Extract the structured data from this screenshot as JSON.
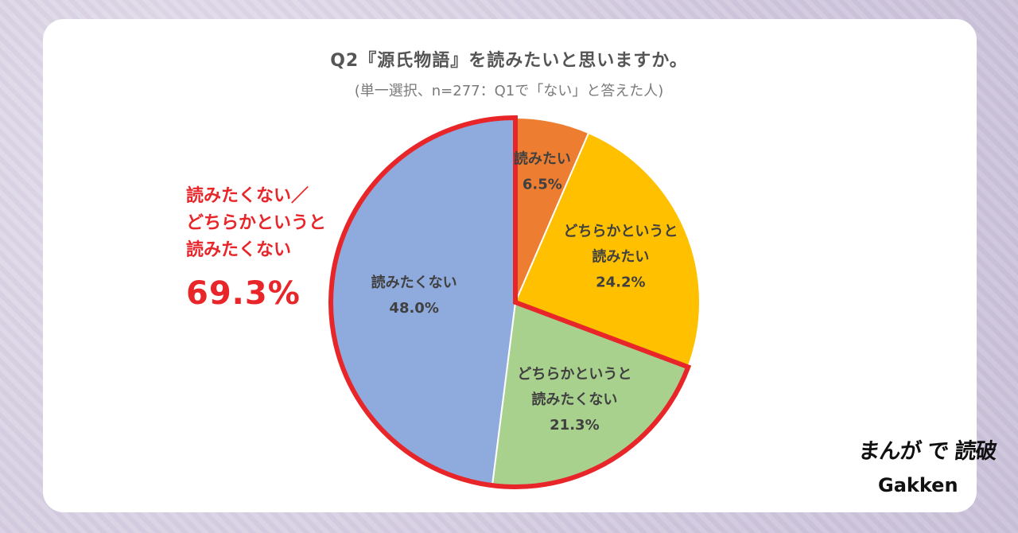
{
  "title": "Q2『源氏物語』を読みたいと思いますか。",
  "subtitle": "(単一選択、n=277：Q1で「ない」と答えた人)",
  "callout": {
    "line1": "読みたくない／",
    "line2": "どちらかというと",
    "line3": "読みたくない",
    "value": "69.3%"
  },
  "chart_data": {
    "type": "pie",
    "start": "top, clockwise",
    "slices": [
      {
        "label_lines": [
          "読みたい"
        ],
        "value": 6.5,
        "value_label": "6.5%",
        "color": "#ed7d31"
      },
      {
        "label_lines": [
          "どちらかというと",
          "読みたい"
        ],
        "value": 24.2,
        "value_label": "24.2%",
        "color": "#ffc000"
      },
      {
        "label_lines": [
          "どちらかというと",
          "読みたくない"
        ],
        "value": 21.3,
        "value_label": "21.3%",
        "color": "#a9d18e"
      },
      {
        "label_lines": [
          "読みたくない"
        ],
        "value": 48.0,
        "value_label": "48.0%",
        "color": "#8faadc"
      }
    ],
    "highlight": {
      "slices": [
        2,
        3
      ],
      "outline_color": "#e8262a",
      "total_label": "69.3%"
    }
  },
  "logos": {
    "brand_top": "まんが で 読破",
    "brand_bottom": "Gakken"
  }
}
